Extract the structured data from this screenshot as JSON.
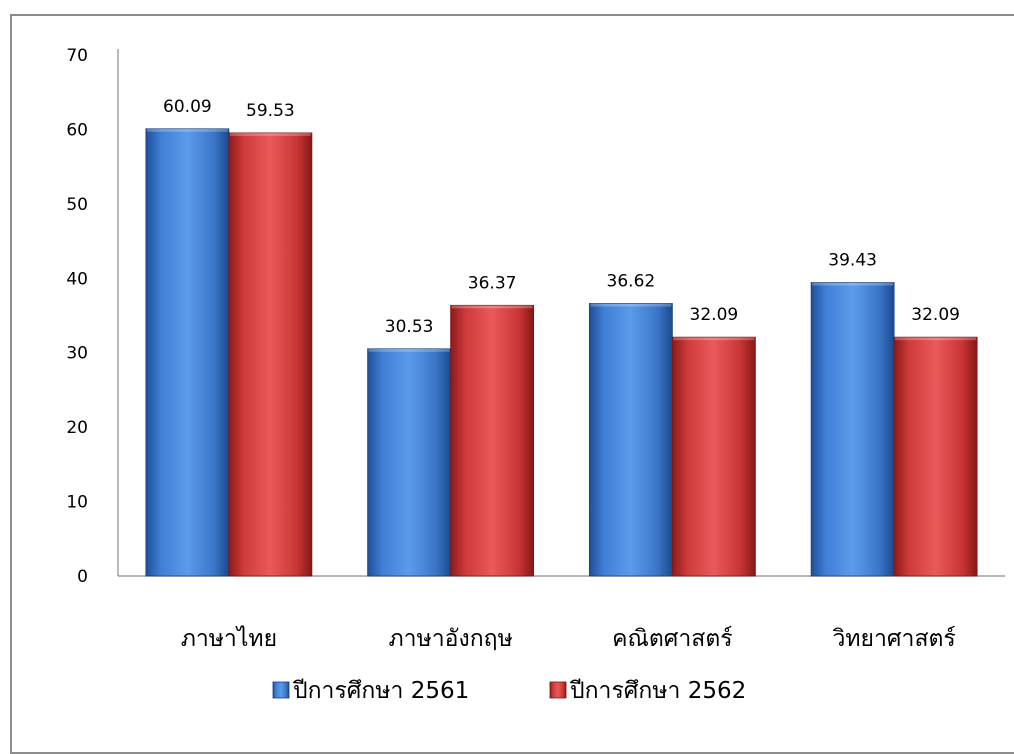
{
  "chart_data": {
    "type": "bar",
    "categories": [
      "ภาษาไทย",
      "ภาษาอังกฤษ",
      "คณิตศาสตร์",
      "วิทยาศาสตร์"
    ],
    "series": [
      {
        "name": "ปีการศึกษา 2561",
        "values": [
          60.09,
          30.53,
          36.62,
          39.43
        ],
        "color": "#3a78c9"
      },
      {
        "name": "ปีการศึกษา 2562",
        "values": [
          59.53,
          36.37,
          32.09,
          32.09
        ],
        "color": "#d23a3a"
      }
    ],
    "data_labels": [
      [
        "60.09",
        "30.53",
        "36.62",
        "39.43"
      ],
      [
        "59.53",
        "36.37",
        "32.09",
        "32.09"
      ]
    ],
    "y_ticks": [
      "0",
      "10",
      "20",
      "30",
      "40",
      "50",
      "60",
      "70"
    ],
    "ylim": [
      0,
      70
    ],
    "grid": false,
    "legend_position": "bottom"
  }
}
